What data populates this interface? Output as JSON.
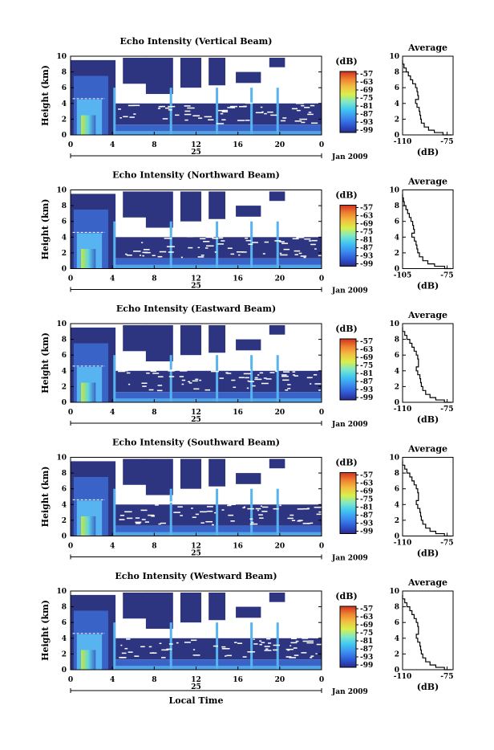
{
  "figure": {
    "xlabel": "Local Time",
    "date_label": "Jan 2009",
    "day_label": "25"
  },
  "colors": {
    "colorbar_stops": [
      "#2a2a8c",
      "#2e5bd6",
      "#3d8ff0",
      "#3fc6f2",
      "#7fe8c8",
      "#d8f04a",
      "#f2c040",
      "#f08030",
      "#d03020"
    ],
    "echo_dark": "#2e3580",
    "echo_mid": "#3a63c8",
    "echo_light": "#58b4f0"
  },
  "chart_data": [
    {
      "type": "heatmap",
      "title": "Echo Intensity (Vertical Beam)",
      "ylabel": "Height (km)",
      "xlabel": "",
      "xlim": [
        0,
        24
      ],
      "ylim": [
        0,
        10
      ],
      "xticks": [
        "0",
        "4",
        "8",
        "12",
        "16",
        "20",
        "0"
      ],
      "yticks": [
        "0",
        "2",
        "4",
        "6",
        "8",
        "10"
      ],
      "colorbar": {
        "unit": "(dB)",
        "ticks": [
          "-57",
          "-63",
          "-69",
          "-75",
          "-81",
          "-87",
          "-93",
          "-99"
        ]
      },
      "profile": {
        "title": "Average",
        "xlabel": "(dB)",
        "xlim": [
          -110,
          -75
        ],
        "xticks": [
          "-110",
          "-75"
        ],
        "yticks": [
          "0",
          "2",
          "4",
          "6",
          "8",
          "10"
        ],
        "heights": [
          0,
          0.3,
          0.6,
          1,
          1.5,
          2,
          2.5,
          3,
          3.5,
          4,
          4.5,
          5,
          5.5,
          6,
          6.5,
          7,
          7.5,
          8,
          8.5,
          9,
          9.5
        ],
        "values": [
          -76,
          -82,
          -88,
          -92,
          -95,
          -97,
          -97.5,
          -98,
          -98.5,
          -100,
          -101,
          -99,
          -99.5,
          -100,
          -101,
          -103,
          -104.5,
          -106,
          -107.5,
          -109,
          -110
        ]
      }
    },
    {
      "type": "heatmap",
      "title": "Echo Intensity (Northward Beam)",
      "ylabel": "Height (km)",
      "xlabel": "",
      "xlim": [
        0,
        24
      ],
      "ylim": [
        0,
        10
      ],
      "xticks": [
        "0",
        "4",
        "8",
        "12",
        "16",
        "20",
        "0"
      ],
      "yticks": [
        "0",
        "2",
        "4",
        "6",
        "8",
        "10"
      ],
      "colorbar": {
        "unit": "(dB)",
        "ticks": [
          "-57",
          "-63",
          "-69",
          "-75",
          "-81",
          "-87",
          "-93",
          "-99"
        ]
      },
      "profile": {
        "title": "Average",
        "xlabel": "(dB)",
        "xlim": [
          -105,
          -75
        ],
        "xticks": [
          "-105",
          "-75"
        ],
        "yticks": [
          "0",
          "2",
          "4",
          "6",
          "8",
          "10"
        ],
        "heights": [
          0,
          0.3,
          0.6,
          1,
          1.5,
          2,
          2.5,
          3,
          3.5,
          4,
          4.5,
          5,
          5.5,
          6,
          6.5,
          7,
          7.5,
          8,
          8.5,
          9,
          9.5
        ],
        "values": [
          -76,
          -80,
          -86,
          -90,
          -93,
          -95,
          -96,
          -96.5,
          -97,
          -98,
          -99.5,
          -98,
          -98.5,
          -99,
          -100,
          -101,
          -102,
          -103,
          -104,
          -104.5,
          -105
        ]
      }
    },
    {
      "type": "heatmap",
      "title": "Echo Intensity (Eastward Beam)",
      "ylabel": "Height (km)",
      "xlabel": "",
      "xlim": [
        0,
        24
      ],
      "ylim": [
        0,
        10
      ],
      "xticks": [
        "0",
        "4",
        "8",
        "12",
        "16",
        "20",
        "0"
      ],
      "yticks": [
        "0",
        "2",
        "4",
        "6",
        "8",
        "10"
      ],
      "colorbar": {
        "unit": "(dB)",
        "ticks": [
          "-57",
          "-63",
          "-69",
          "-75",
          "-81",
          "-87",
          "-93",
          "-99"
        ]
      },
      "profile": {
        "title": "Average",
        "xlabel": "(dB)",
        "xlim": [
          -110,
          -75
        ],
        "xticks": [
          "-110",
          "-75"
        ],
        "yticks": [
          "0",
          "2",
          "4",
          "6",
          "8",
          "10"
        ],
        "heights": [
          0,
          0.3,
          0.6,
          1,
          1.5,
          2,
          2.5,
          3,
          3.5,
          4,
          4.5,
          5,
          5.5,
          6,
          6.5,
          7,
          7.5,
          8,
          8.5,
          9,
          9.5
        ],
        "values": [
          -76,
          -81,
          -87,
          -91,
          -94,
          -96,
          -97,
          -97.5,
          -98,
          -99.5,
          -100.5,
          -99,
          -99,
          -99.5,
          -100.5,
          -102,
          -103.5,
          -105,
          -107,
          -108.5,
          -110
        ]
      }
    },
    {
      "type": "heatmap",
      "title": "Echo Intensity (Southward Beam)",
      "ylabel": "Height (km)",
      "xlabel": "",
      "xlim": [
        0,
        24
      ],
      "ylim": [
        0,
        10
      ],
      "xticks": [
        "0",
        "4",
        "8",
        "12",
        "16",
        "20",
        "0"
      ],
      "yticks": [
        "0",
        "2",
        "4",
        "6",
        "8",
        "10"
      ],
      "colorbar": {
        "unit": "(dB)",
        "ticks": [
          "-57",
          "-63",
          "-69",
          "-75",
          "-81",
          "-87",
          "-93",
          "-99"
        ]
      },
      "profile": {
        "title": "Average",
        "xlabel": "(dB)",
        "xlim": [
          -110,
          -75
        ],
        "xticks": [
          "-110",
          "-75"
        ],
        "yticks": [
          "0",
          "2",
          "4",
          "6",
          "8",
          "10"
        ],
        "heights": [
          0,
          0.3,
          0.6,
          1,
          1.5,
          2,
          2.5,
          3,
          3.5,
          4,
          4.5,
          5,
          5.5,
          6,
          6.5,
          7,
          7.5,
          8,
          8.5,
          9,
          9.5
        ],
        "values": [
          -76,
          -81,
          -87,
          -91,
          -94,
          -96,
          -97,
          -97.5,
          -98,
          -99.5,
          -100.5,
          -99,
          -99,
          -99.5,
          -100.5,
          -102,
          -103.5,
          -105,
          -107,
          -108.5,
          -110
        ]
      }
    },
    {
      "type": "heatmap",
      "title": "Echo Intensity (Westward Beam)",
      "ylabel": "Height (km)",
      "xlabel": "",
      "xlim": [
        0,
        24
      ],
      "ylim": [
        0,
        10
      ],
      "xticks": [
        "0",
        "4",
        "8",
        "12",
        "16",
        "20",
        "0"
      ],
      "yticks": [
        "0",
        "2",
        "4",
        "6",
        "8",
        "10"
      ],
      "colorbar": {
        "unit": "(dB)",
        "ticks": [
          "-57",
          "-63",
          "-69",
          "-75",
          "-81",
          "-87",
          "-93",
          "-99"
        ]
      },
      "profile": {
        "title": "Average",
        "xlabel": "(dB)",
        "xlim": [
          -110,
          -75
        ],
        "xticks": [
          "-110",
          "-75"
        ],
        "yticks": [
          "0",
          "2",
          "4",
          "6",
          "8",
          "10"
        ],
        "heights": [
          0,
          0.3,
          0.6,
          1,
          1.5,
          2,
          2.5,
          3,
          3.5,
          4,
          4.5,
          5,
          5.5,
          6,
          6.5,
          7,
          7.5,
          8,
          8.5,
          9,
          9.5
        ],
        "values": [
          -76,
          -81,
          -87,
          -91,
          -94,
          -96,
          -97,
          -97.5,
          -98,
          -99.5,
          -100.5,
          -99,
          -99,
          -99.5,
          -100.5,
          -102,
          -103.5,
          -105,
          -107,
          -108.5,
          -110
        ]
      }
    }
  ]
}
